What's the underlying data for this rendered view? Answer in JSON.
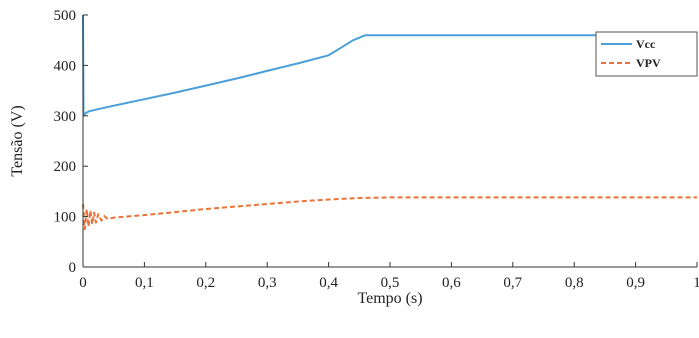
{
  "chart_data": {
    "type": "line",
    "xlabel": "Tempo (s)",
    "ylabel": "Tensão (V)",
    "xlim": [
      0,
      1
    ],
    "ylim": [
      0,
      500
    ],
    "x_ticks": [
      0,
      0.1,
      0.2,
      0.3,
      0.4,
      0.5,
      0.6,
      0.7,
      0.8,
      0.9,
      1
    ],
    "x_tick_labels": [
      "0",
      "0,1",
      "0,2",
      "0,3",
      "0,4",
      "0,5",
      "0,6",
      "0,7",
      "0,8",
      "0,9",
      "1"
    ],
    "y_ticks": [
      0,
      100,
      200,
      300,
      400,
      500
    ],
    "y_tick_labels": [
      "0",
      "100",
      "200",
      "300",
      "400",
      "500"
    ],
    "grid": false,
    "legend_position": "top-right",
    "series": [
      {
        "name": "Vcc",
        "color": "#4a9fd8",
        "style": "solid",
        "x": [
          0,
          0.0008,
          0.004,
          0.01,
          0.02,
          0.05,
          0.1,
          0.15,
          0.2,
          0.25,
          0.3,
          0.35,
          0.4,
          0.44,
          0.46,
          0.5,
          0.6,
          0.7,
          0.8,
          0.9,
          1.0
        ],
        "y": [
          500,
          300,
          305,
          309,
          312,
          320,
          333,
          346,
          360,
          374,
          389,
          404,
          420,
          450,
          460,
          460,
          460,
          460,
          460,
          460,
          460
        ]
      },
      {
        "name": "VPV",
        "color": "#e8743b",
        "style": "dashed",
        "x": [
          0,
          0.003,
          0.006,
          0.009,
          0.012,
          0.015,
          0.018,
          0.021,
          0.025,
          0.03,
          0.035,
          0.04,
          0.05,
          0.07,
          0.1,
          0.15,
          0.2,
          0.25,
          0.3,
          0.35,
          0.4,
          0.45,
          0.5,
          0.6,
          0.7,
          0.8,
          0.9,
          1.0
        ],
        "y": [
          125,
          75,
          115,
          80,
          112,
          85,
          108,
          88,
          105,
          92,
          101,
          95,
          98,
          100,
          103,
          109,
          115,
          120,
          125,
          130,
          134,
          137,
          138,
          138,
          138,
          138,
          138,
          138
        ]
      }
    ]
  }
}
